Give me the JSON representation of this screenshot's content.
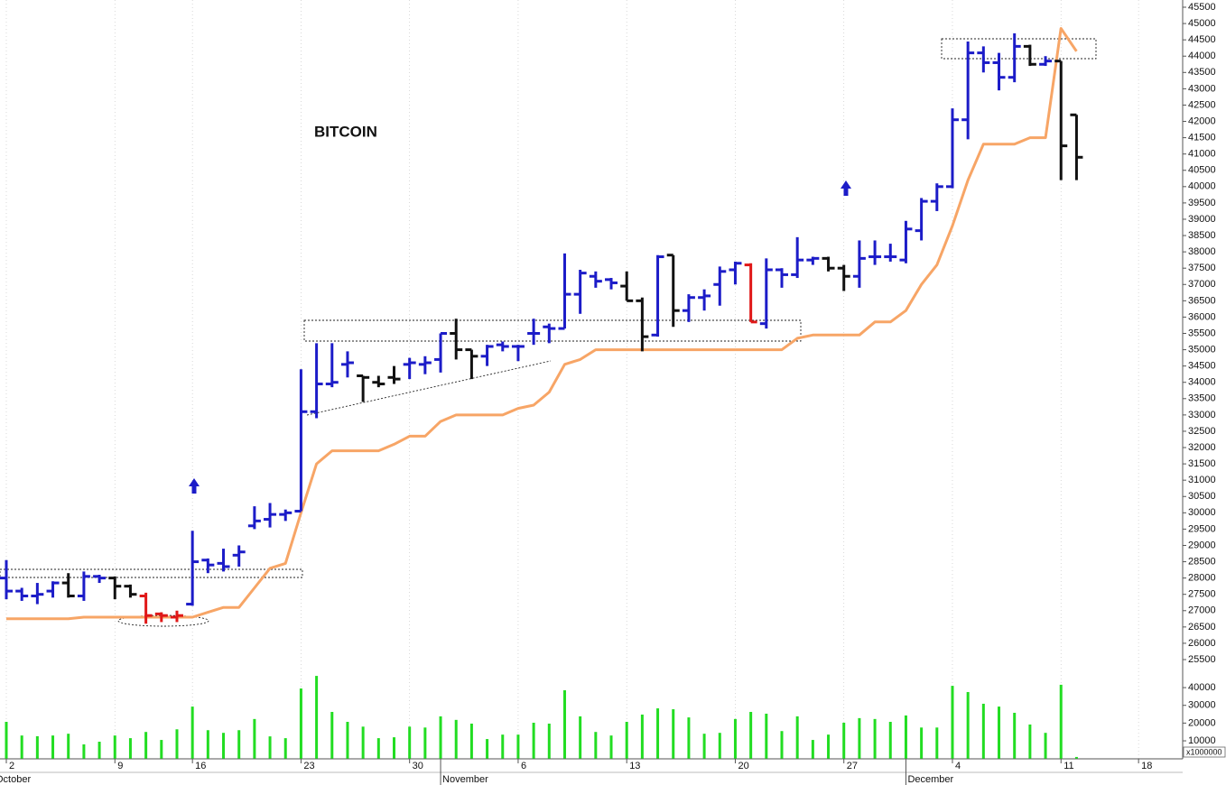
{
  "chart_data": {
    "type": "ohlc",
    "title": "BITCOIN",
    "categories": [
      "2",
      null,
      null,
      null,
      null,
      null,
      null,
      "9",
      null,
      null,
      null,
      null,
      "16",
      null,
      null,
      null,
      null,
      null,
      null,
      "23",
      null,
      null,
      null,
      null,
      null,
      null,
      "30",
      null,
      null,
      null,
      null,
      null,
      null,
      "6",
      null,
      null,
      null,
      null,
      null,
      null,
      "13",
      null,
      null,
      null,
      null,
      null,
      null,
      "20",
      null,
      null,
      null,
      null,
      null,
      null,
      "27",
      null,
      null,
      null,
      null,
      null,
      null,
      "4",
      null,
      null,
      null,
      null,
      null,
      null,
      "11",
      null,
      null,
      null,
      null,
      "18",
      null,
      null
    ],
    "months": [
      "October",
      null,
      null,
      null,
      null,
      null,
      null,
      null,
      null,
      null,
      null,
      null,
      null,
      null,
      null,
      null,
      null,
      null,
      null,
      null,
      null,
      null,
      null,
      null,
      null,
      null,
      null,
      null,
      "November",
      null,
      null,
      null,
      null,
      null,
      null,
      null,
      null,
      null,
      null,
      null,
      null,
      null,
      null,
      null,
      null,
      null,
      null,
      null,
      null,
      null,
      null,
      null,
      null,
      null,
      null,
      null,
      null,
      null,
      "December",
      null,
      null,
      null,
      null,
      null,
      null,
      null,
      null,
      null,
      null,
      null,
      null,
      null,
      null,
      null,
      null,
      null
    ],
    "open": [
      28000,
      27600,
      27450,
      27600,
      27850,
      27450,
      28050,
      28000,
      27750,
      27450,
      26900,
      26800,
      27200,
      28550,
      28450,
      28700,
      29600,
      29800,
      29950,
      30050,
      33100,
      33950,
      34550,
      34200,
      34000,
      34150,
      34550,
      34550,
      34700,
      35500,
      35000,
      34800,
      35150,
      35100,
      35500,
      35700,
      35650,
      36700,
      37250,
      37150,
      36950,
      36500,
      35450,
      37900,
      36200,
      36600,
      37000,
      37450,
      37600,
      35800,
      37450,
      37300,
      37750,
      37800,
      37500,
      37250,
      37850,
      37850,
      37750,
      38650,
      39550,
      40000,
      42050,
      44100,
      43800,
      43350,
      44300,
      43750,
      43850,
      42200,
      null,
      null,
      null,
      null,
      null,
      null
    ],
    "high": [
      28550,
      27700,
      27850,
      27900,
      28150,
      28200,
      28100,
      28050,
      27800,
      27550,
      26950,
      27000,
      29450,
      28600,
      28900,
      29000,
      30200,
      30300,
      30100,
      34400,
      35200,
      35200,
      34950,
      34200,
      34200,
      34500,
      34750,
      34800,
      35500,
      35950,
      35000,
      35150,
      35250,
      35150,
      35950,
      35800,
      37950,
      37450,
      37400,
      37200,
      37400,
      36600,
      37900,
      37900,
      36700,
      36850,
      37550,
      37700,
      37650,
      37800,
      37500,
      38450,
      37850,
      37850,
      37600,
      38350,
      38350,
      38250,
      38950,
      39650,
      40100,
      42400,
      44450,
      44300,
      44100,
      44700,
      44350,
      44000,
      43850,
      42200,
      null,
      null,
      null,
      null,
      null,
      null
    ],
    "low": [
      27350,
      27300,
      27200,
      27400,
      27400,
      27300,
      27850,
      27350,
      27400,
      26600,
      26650,
      26650,
      27150,
      28150,
      28200,
      28350,
      29500,
      29550,
      29750,
      30050,
      32900,
      33850,
      34150,
      33400,
      33850,
      33950,
      34100,
      34250,
      34300,
      34700,
      34100,
      34500,
      34950,
      34650,
      35150,
      35200,
      35650,
      36100,
      36900,
      36850,
      36500,
      34950,
      35400,
      35700,
      35850,
      36200,
      36350,
      37000,
      35850,
      35650,
      36900,
      37200,
      37600,
      37400,
      36800,
      36900,
      37600,
      37700,
      37650,
      38350,
      39250,
      39950,
      41450,
      43500,
      42950,
      43200,
      43700,
      43700,
      40200,
      40200,
      null,
      null,
      null,
      null,
      null,
      null
    ],
    "close": [
      27600,
      27450,
      27500,
      27850,
      27450,
      28050,
      28000,
      27750,
      27500,
      26850,
      26850,
      26850,
      28500,
      28400,
      28350,
      28800,
      29750,
      29950,
      30000,
      33100,
      33950,
      34000,
      34600,
      34150,
      33950,
      34100,
      34600,
      34600,
      35500,
      35000,
      34800,
      35100,
      35100,
      35100,
      35500,
      35650,
      36700,
      37350,
      37100,
      37050,
      36500,
      35400,
      37850,
      36200,
      36600,
      36650,
      37400,
      37650,
      35850,
      37450,
      37300,
      37750,
      37800,
      37500,
      37250,
      37800,
      37850,
      37850,
      38700,
      39550,
      40000,
      42050,
      44100,
      43800,
      43350,
      44300,
      43750,
      43850,
      41250,
      40900,
      null,
      null,
      null,
      null,
      null,
      null
    ],
    "bar_colors": [
      "#1c1cc8",
      "#1c1cc8",
      "#1c1cc8",
      "#1c1cc8",
      "#111111",
      "#1c1cc8",
      "#1c1cc8",
      "#111111",
      "#111111",
      "#e01818",
      "#e01818",
      "#e01818",
      "#1c1cc8",
      "#1c1cc8",
      "#1c1cc8",
      "#1c1cc8",
      "#1c1cc8",
      "#1c1cc8",
      "#1c1cc8",
      "#1c1cc8",
      "#1c1cc8",
      "#1c1cc8",
      "#1c1cc8",
      "#111111",
      "#111111",
      "#111111",
      "#1c1cc8",
      "#1c1cc8",
      "#1c1cc8",
      "#111111",
      "#111111",
      "#1c1cc8",
      "#1c1cc8",
      "#1c1cc8",
      "#1c1cc8",
      "#1c1cc8",
      "#1c1cc8",
      "#1c1cc8",
      "#1c1cc8",
      "#1c1cc8",
      "#111111",
      "#111111",
      "#1c1cc8",
      "#111111",
      "#1c1cc8",
      "#1c1cc8",
      "#1c1cc8",
      "#1c1cc8",
      "#e01818",
      "#1c1cc8",
      "#1c1cc8",
      "#1c1cc8",
      "#1c1cc8",
      "#111111",
      "#111111",
      "#1c1cc8",
      "#1c1cc8",
      "#1c1cc8",
      "#1c1cc8",
      "#1c1cc8",
      "#1c1cc8",
      "#1c1cc8",
      "#1c1cc8",
      "#1c1cc8",
      "#1c1cc8",
      "#1c1cc8",
      "#111111",
      "#1c1cc8",
      "#111111",
      "#111111",
      null,
      null,
      null,
      null,
      null,
      null
    ],
    "overlay": {
      "color": "#f7a566",
      "values": [
        26750,
        26750,
        26750,
        26750,
        26750,
        26800,
        26800,
        26800,
        26800,
        26800,
        26800,
        26800,
        26800,
        26950,
        27100,
        27100,
        27700,
        28300,
        28450,
        30000,
        31500,
        31900,
        31900,
        31900,
        31900,
        32100,
        32350,
        32350,
        32800,
        33000,
        33000,
        33000,
        33000,
        33200,
        33300,
        33700,
        34550,
        34700,
        35000,
        35000,
        35000,
        35000,
        35000,
        35000,
        35000,
        35000,
        35000,
        35000,
        35000,
        35000,
        35000,
        35350,
        35450,
        35450,
        35450,
        35450,
        35850,
        35850,
        36200,
        37000,
        37600,
        38800,
        40200,
        41300,
        41300,
        41300,
        41500,
        41500,
        44850,
        44150,
        null,
        null,
        null,
        null,
        null,
        null
      ]
    },
    "ylim": [
      25500,
      45500
    ],
    "yticks": [
      25500,
      26000,
      26500,
      27000,
      27500,
      28000,
      28500,
      29000,
      29500,
      30000,
      30500,
      31000,
      31500,
      32000,
      32500,
      33000,
      33500,
      34000,
      34500,
      35000,
      35500,
      36000,
      36500,
      37000,
      37500,
      38000,
      38500,
      39000,
      39500,
      40000,
      40500,
      41000,
      41500,
      42000,
      42500,
      43000,
      43500,
      44000,
      44500,
      45000,
      45500
    ],
    "xgrid": true,
    "volume": {
      "color": "#22dd22",
      "label": "x1000000",
      "ylim": [
        0,
        50000
      ],
      "yticks": [
        10000,
        20000,
        30000,
        40000
      ],
      "values": [
        20700,
        13000,
        12600,
        13000,
        14000,
        8000,
        9500,
        13000,
        11500,
        15000,
        10500,
        16500,
        29300,
        16000,
        14500,
        16000,
        22300,
        12500,
        11500,
        39500,
        46600,
        26300,
        20700,
        18000,
        11500,
        12000,
        18000,
        17500,
        23800,
        21800,
        19700,
        11000,
        13500,
        13500,
        20200,
        19700,
        38500,
        23800,
        15000,
        13000,
        20700,
        24800,
        28300,
        27800,
        23200,
        14000,
        14500,
        22300,
        26300,
        25300,
        15500,
        23800,
        10500,
        13500,
        20200,
        22800,
        22300,
        20700,
        24300,
        17500,
        17500,
        41000,
        37500,
        30900,
        29300,
        25800,
        19200,
        14500,
        41600,
        900,
        null,
        null,
        null,
        null,
        null,
        null
      ]
    }
  }
}
